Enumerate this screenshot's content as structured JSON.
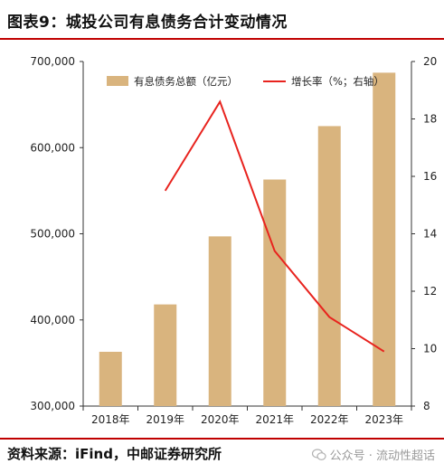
{
  "header": {
    "title": "图表9：城投公司有息债务合计变动情况"
  },
  "footer": {
    "source": "资料来源：iFind，中邮证券研究所",
    "watermark": "公众号 · 流动性超话"
  },
  "colors": {
    "bar": "#D9B47E",
    "line": "#E8231E",
    "accent_rule": "#C00000",
    "axis": "#333333"
  },
  "chart_data": {
    "type": "bar",
    "categories": [
      "2018年",
      "2019年",
      "2020年",
      "2021年",
      "2022年",
      "2023年"
    ],
    "series": [
      {
        "name": "有息债务总额（亿元）",
        "type": "bar",
        "axis": "left",
        "values": [
          363000,
          418000,
          497000,
          563000,
          625000,
          687000
        ]
      },
      {
        "name": "增长率（%；右轴）",
        "type": "line",
        "axis": "right",
        "values": [
          null,
          15.5,
          18.6,
          13.4,
          11.1,
          9.9
        ]
      }
    ],
    "y_left": {
      "min": 300000,
      "max": 700000,
      "ticks": [
        300000,
        400000,
        500000,
        600000,
        700000
      ],
      "tick_labels": [
        "300,000",
        "400,000",
        "500,000",
        "600,000",
        "700,000"
      ]
    },
    "y_right": {
      "min": 8,
      "max": 20,
      "ticks": [
        8,
        10,
        12,
        14,
        16,
        18,
        20
      ],
      "tick_labels": [
        "8",
        "10",
        "12",
        "14",
        "16",
        "18",
        "20"
      ]
    },
    "legend_position": "top",
    "grid": false
  }
}
